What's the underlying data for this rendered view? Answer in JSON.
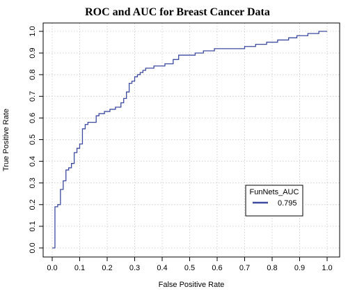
{
  "chart_data": {
    "type": "line",
    "title": "ROC and AUC for Breast Cancer Data",
    "xlabel": "False Positive Rate",
    "ylabel": "True Positive Rate",
    "xlim": [
      0.0,
      1.0
    ],
    "ylim": [
      0.0,
      1.0
    ],
    "xticks": [
      "0.0",
      "0.1",
      "0.2",
      "0.3",
      "0.4",
      "0.5",
      "0.6",
      "0.7",
      "0.8",
      "0.9",
      "1.0"
    ],
    "yticks": [
      "0.0",
      "0.1",
      "0.2",
      "0.3",
      "0.4",
      "0.5",
      "0.6",
      "0.7",
      "0.8",
      "0.9",
      "1.0"
    ],
    "grid": true,
    "legend": {
      "title": "FunNets_AUC",
      "placement": "lower-right",
      "entries": [
        {
          "label": "0.795"
        }
      ]
    },
    "series": [
      {
        "color": "#3d4aa0",
        "x": [
          0,
          0.01,
          0.01,
          0.02,
          0.02,
          0.03,
          0.03,
          0.04,
          0.04,
          0.05,
          0.05,
          0.06,
          0.06,
          0.07,
          0.07,
          0.08,
          0.08,
          0.09,
          0.09,
          0.1,
          0.1,
          0.11,
          0.11,
          0.12,
          0.12,
          0.13,
          0.13,
          0.16,
          0.16,
          0.17,
          0.17,
          0.19,
          0.19,
          0.21,
          0.21,
          0.23,
          0.23,
          0.25,
          0.25,
          0.26,
          0.26,
          0.27,
          0.27,
          0.28,
          0.28,
          0.29,
          0.29,
          0.3,
          0.3,
          0.31,
          0.31,
          0.32,
          0.32,
          0.33,
          0.33,
          0.34,
          0.34,
          0.35,
          0.35,
          0.37,
          0.37,
          0.39,
          0.39,
          0.41,
          0.41,
          0.44,
          0.44,
          0.46,
          0.46,
          0.47,
          0.47,
          0.52,
          0.52,
          0.55,
          0.55,
          0.59,
          0.59,
          0.7,
          0.7,
          0.74,
          0.74,
          0.78,
          0.78,
          0.82,
          0.82,
          0.86,
          0.86,
          0.89,
          0.89,
          0.91,
          0.91,
          0.93,
          0.93,
          0.95,
          0.95,
          0.97,
          0.97,
          1.0
        ],
        "y": [
          0,
          0,
          0.19,
          0.19,
          0.2,
          0.2,
          0.27,
          0.27,
          0.31,
          0.31,
          0.36,
          0.36,
          0.37,
          0.37,
          0.39,
          0.39,
          0.44,
          0.44,
          0.46,
          0.46,
          0.48,
          0.48,
          0.55,
          0.55,
          0.57,
          0.57,
          0.58,
          0.58,
          0.61,
          0.61,
          0.62,
          0.62,
          0.63,
          0.63,
          0.64,
          0.64,
          0.65,
          0.65,
          0.67,
          0.67,
          0.69,
          0.69,
          0.72,
          0.72,
          0.76,
          0.76,
          0.77,
          0.77,
          0.79,
          0.79,
          0.8,
          0.8,
          0.81,
          0.81,
          0.82,
          0.82,
          0.83,
          0.83,
          0.83,
          0.83,
          0.84,
          0.84,
          0.84,
          0.84,
          0.85,
          0.85,
          0.87,
          0.87,
          0.89,
          0.89,
          0.89,
          0.89,
          0.9,
          0.9,
          0.91,
          0.91,
          0.92,
          0.92,
          0.93,
          0.93,
          0.94,
          0.94,
          0.95,
          0.95,
          0.96,
          0.96,
          0.97,
          0.97,
          0.98,
          0.98,
          0.98,
          0.98,
          0.99,
          0.99,
          0.99,
          0.99,
          1.0,
          1.0
        ]
      }
    ]
  }
}
